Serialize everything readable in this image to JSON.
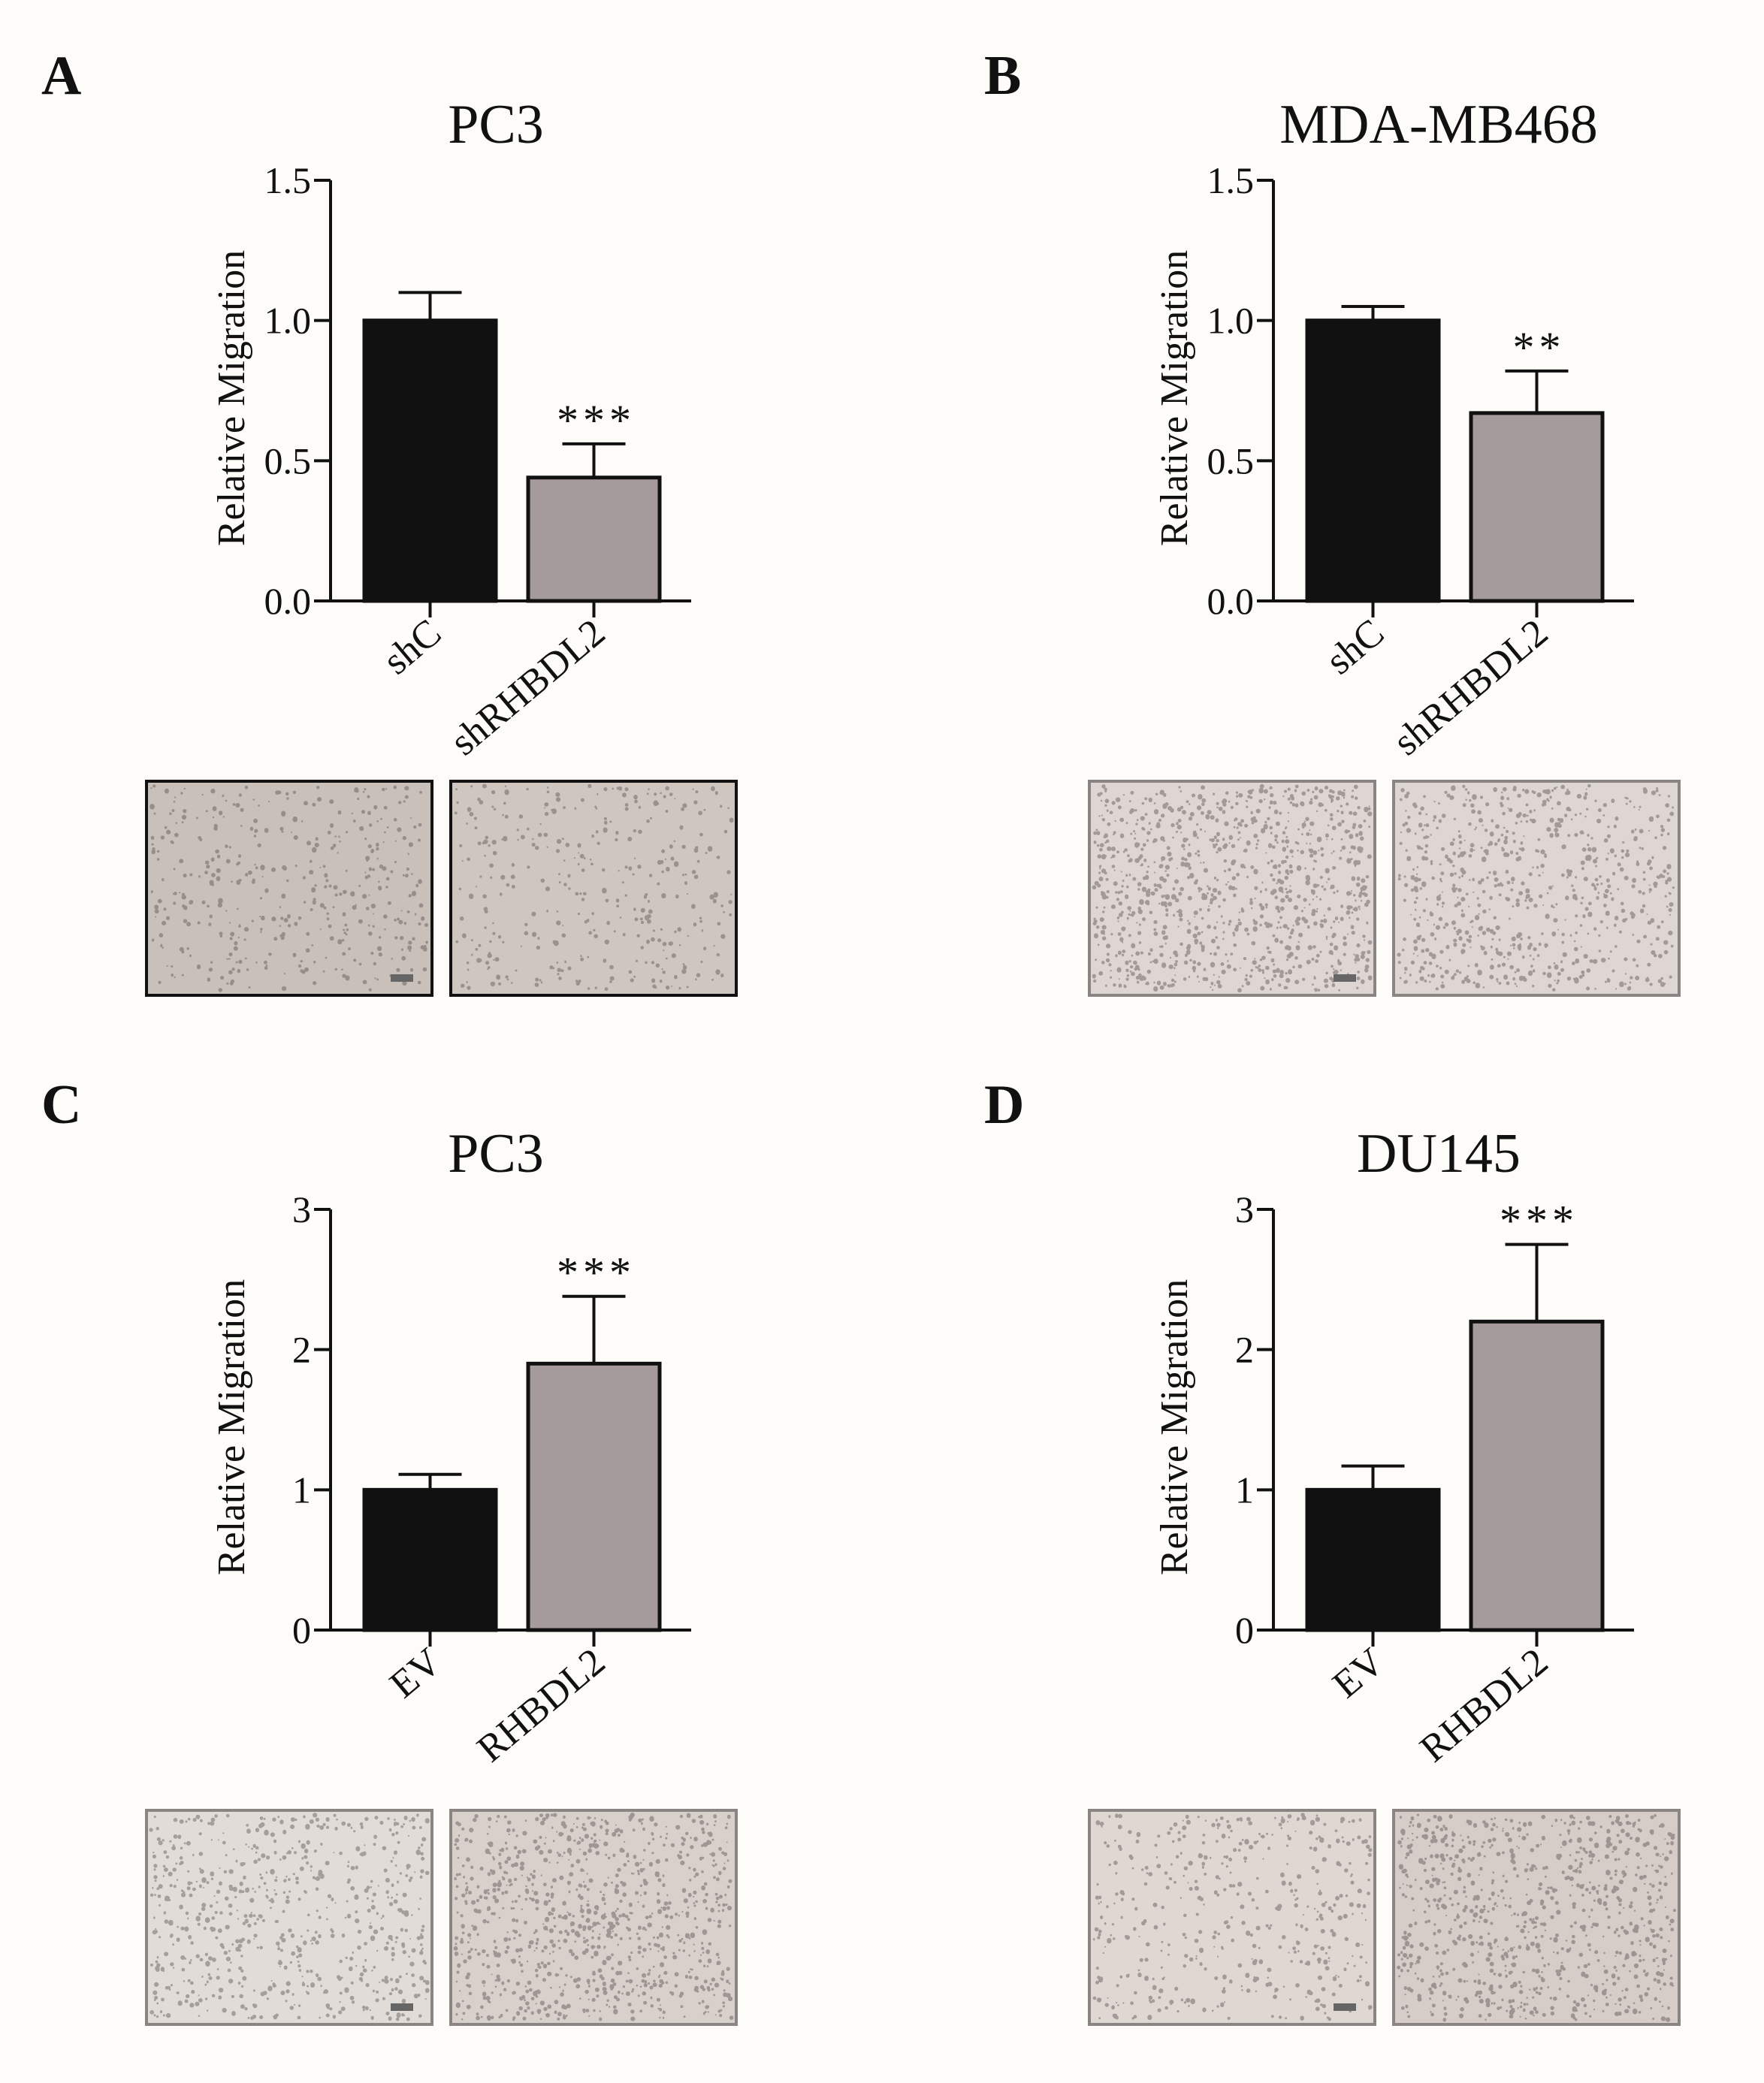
{
  "chart_data": [
    {
      "panel": "A",
      "type": "bar",
      "title": "PC3",
      "ylabel": "Relative Migration",
      "categories": [
        "shC",
        "shRHBDL2"
      ],
      "values": [
        1.0,
        0.44
      ],
      "errors": [
        0.1,
        0.12
      ],
      "significance": [
        "",
        "***"
      ],
      "ylim": [
        0,
        1.5
      ],
      "yticks": [
        "0.0",
        "0.5",
        "1.0",
        "1.5"
      ],
      "ytick_values": [
        0,
        0.5,
        1.0,
        1.5
      ],
      "bar_colors": [
        "#111111",
        "#a59b9a"
      ],
      "micrographs": [
        {
          "name": "micrograph-shC",
          "tone": "#c9c0ba",
          "density": 0.12,
          "scale_bar": true
        },
        {
          "name": "micrograph-shRHBDL2",
          "tone": "#cfc6c0",
          "density": 0.08,
          "scale_bar": false
        }
      ]
    },
    {
      "panel": "B",
      "type": "bar",
      "title": "MDA-MB468",
      "ylabel": "Relative Migration",
      "categories": [
        "shC",
        "shRHBDL2"
      ],
      "values": [
        1.0,
        0.67
      ],
      "errors": [
        0.05,
        0.15
      ],
      "significance": [
        "",
        "**"
      ],
      "ylim": [
        0,
        1.5
      ],
      "yticks": [
        "0.0",
        "0.5",
        "1.0",
        "1.5"
      ],
      "ytick_values": [
        0,
        0.5,
        1.0,
        1.5
      ],
      "bar_colors": [
        "#111111",
        "#a59b9a"
      ],
      "micrographs": [
        {
          "name": "micrograph-shC",
          "tone": "#ddd6d2",
          "density": 0.55,
          "scale_bar": true
        },
        {
          "name": "micrograph-shRHBDL2",
          "tone": "#ddd6d2",
          "density": 0.35,
          "scale_bar": false
        }
      ]
    },
    {
      "panel": "C",
      "type": "bar",
      "title": "PC3",
      "ylabel": "Relative Migration",
      "categories": [
        "EV",
        "RHBDL2"
      ],
      "values": [
        1.0,
        1.9
      ],
      "errors": [
        0.11,
        0.48
      ],
      "significance": [
        "",
        "***"
      ],
      "ylim": [
        0,
        3
      ],
      "yticks": [
        "0",
        "1",
        "2",
        "3"
      ],
      "ytick_values": [
        0,
        1,
        2,
        3
      ],
      "bar_colors": [
        "#111111",
        "#a59b9a"
      ],
      "micrographs": [
        {
          "name": "micrograph-EV",
          "tone": "#e2dcd8",
          "density": 0.3,
          "scale_bar": true
        },
        {
          "name": "micrograph-RHBDL2",
          "tone": "#d8d0cb",
          "density": 0.5,
          "scale_bar": false
        }
      ]
    },
    {
      "panel": "D",
      "type": "bar",
      "title": "DU145",
      "ylabel": "Relative Migration",
      "categories": [
        "EV",
        "RHBDL2"
      ],
      "values": [
        1.0,
        2.2
      ],
      "errors": [
        0.17,
        0.55
      ],
      "significance": [
        "",
        "***"
      ],
      "ylim": [
        0,
        3
      ],
      "yticks": [
        "0",
        "1",
        "2",
        "3"
      ],
      "ytick_values": [
        0,
        1,
        2,
        3
      ],
      "bar_colors": [
        "#111111",
        "#a59b9a"
      ],
      "micrographs": [
        {
          "name": "micrograph-EV",
          "tone": "#ded7d2",
          "density": 0.15,
          "scale_bar": true
        },
        {
          "name": "micrograph-RHBDL2",
          "tone": "#d6cdc8",
          "density": 0.45,
          "scale_bar": false
        }
      ]
    }
  ]
}
